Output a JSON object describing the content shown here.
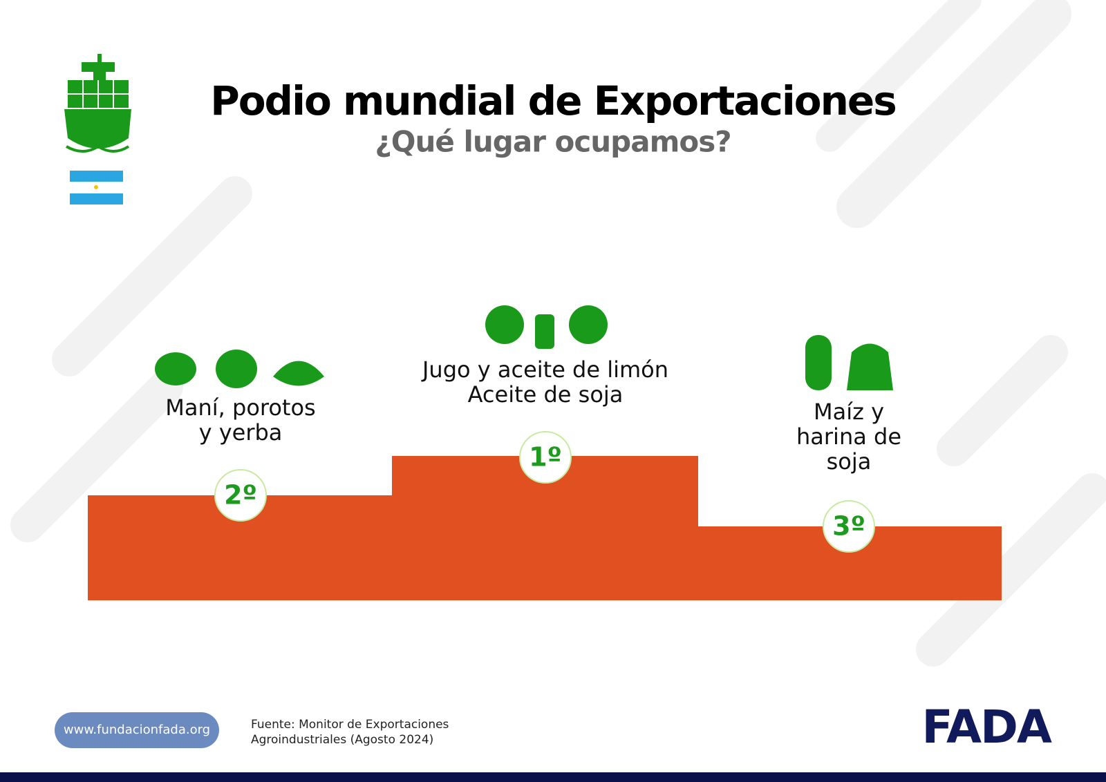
{
  "header": {
    "title": "Podio mundial de Exportaciones",
    "subtitle": "¿Qué lugar ocupamos?"
  },
  "podium": [
    {
      "rank": "2º",
      "lines": [
        "Maní, porotos",
        "y yerba"
      ]
    },
    {
      "rank": "1º",
      "lines": [
        "Jugo y aceite de limón",
        "Aceite de soja"
      ]
    },
    {
      "rank": "3º",
      "lines": [
        "Maíz y",
        "harina de",
        "soja"
      ]
    }
  ],
  "footer": {
    "url": "www.fundacionfada.org",
    "source": [
      "Fuente: Monitor de Exportaciones",
      "Agroindustriales (Agosto 2024)"
    ],
    "logo": "FADA"
  }
}
